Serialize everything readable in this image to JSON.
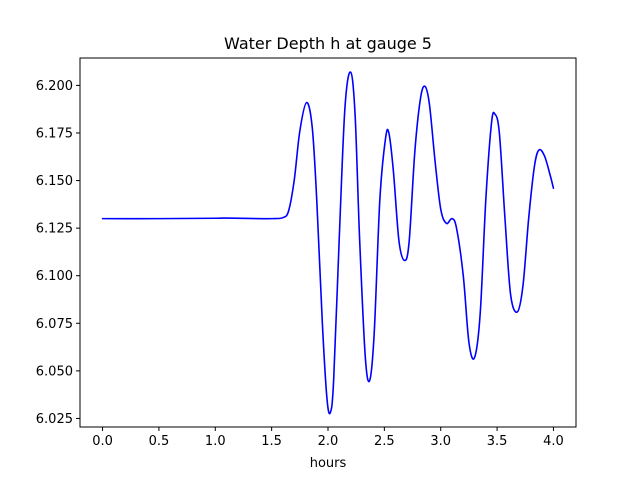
{
  "chart_data": {
    "type": "line",
    "title": "Water Depth h at gauge 5",
    "xlabel": "hours",
    "ylabel": "",
    "xlim": [
      -0.2,
      4.2
    ],
    "ylim": [
      6.0205,
      6.2144
    ],
    "xticks": [
      0.0,
      0.5,
      1.0,
      1.5,
      2.0,
      2.5,
      3.0,
      3.5,
      4.0
    ],
    "xtick_labels": [
      "0.0",
      "0.5",
      "1.0",
      "1.5",
      "2.0",
      "2.5",
      "3.0",
      "3.5",
      "4.0"
    ],
    "yticks": [
      6.025,
      6.05,
      6.075,
      6.1,
      6.125,
      6.15,
      6.175,
      6.2
    ],
    "ytick_labels": [
      "6.025",
      "6.050",
      "6.075",
      "6.100",
      "6.125",
      "6.150",
      "6.175",
      "6.200"
    ],
    "grid": false,
    "series": [
      {
        "name": "",
        "color": "#0000ff",
        "points": [
          [
            0.0,
            6.13
          ],
          [
            0.5,
            6.13
          ],
          [
            1.0,
            6.1302
          ],
          [
            1.1,
            6.1303
          ],
          [
            1.3,
            6.1301
          ],
          [
            1.5,
            6.13
          ],
          [
            1.6,
            6.1305
          ],
          [
            1.65,
            6.134
          ],
          [
            1.7,
            6.15
          ],
          [
            1.75,
            6.176
          ],
          [
            1.81,
            6.191
          ],
          [
            1.86,
            6.178
          ],
          [
            1.9,
            6.14
          ],
          [
            1.95,
            6.075
          ],
          [
            1.99,
            6.036
          ],
          [
            2.02,
            6.028
          ],
          [
            2.05,
            6.045
          ],
          [
            2.1,
            6.12
          ],
          [
            2.15,
            6.188
          ],
          [
            2.2,
            6.207
          ],
          [
            2.24,
            6.185
          ],
          [
            2.28,
            6.12
          ],
          [
            2.33,
            6.058
          ],
          [
            2.37,
            6.045
          ],
          [
            2.41,
            6.07
          ],
          [
            2.46,
            6.14
          ],
          [
            2.51,
            6.172
          ],
          [
            2.54,
            6.175
          ],
          [
            2.58,
            6.155
          ],
          [
            2.63,
            6.118
          ],
          [
            2.68,
            6.108
          ],
          [
            2.72,
            6.118
          ],
          [
            2.77,
            6.165
          ],
          [
            2.82,
            6.193
          ],
          [
            2.86,
            6.1995
          ],
          [
            2.9,
            6.19
          ],
          [
            2.95,
            6.16
          ],
          [
            3.0,
            6.135
          ],
          [
            3.05,
            6.1275
          ],
          [
            3.1,
            6.13
          ],
          [
            3.14,
            6.125
          ],
          [
            3.2,
            6.1
          ],
          [
            3.25,
            6.065
          ],
          [
            3.3,
            6.057
          ],
          [
            3.35,
            6.08
          ],
          [
            3.4,
            6.14
          ],
          [
            3.45,
            6.18
          ],
          [
            3.48,
            6.185
          ],
          [
            3.52,
            6.175
          ],
          [
            3.57,
            6.13
          ],
          [
            3.62,
            6.09
          ],
          [
            3.68,
            6.081
          ],
          [
            3.73,
            6.095
          ],
          [
            3.78,
            6.13
          ],
          [
            3.83,
            6.157
          ],
          [
            3.87,
            6.166
          ],
          [
            3.92,
            6.163
          ],
          [
            3.97,
            6.153
          ],
          [
            4.0,
            6.146
          ]
        ]
      }
    ]
  }
}
